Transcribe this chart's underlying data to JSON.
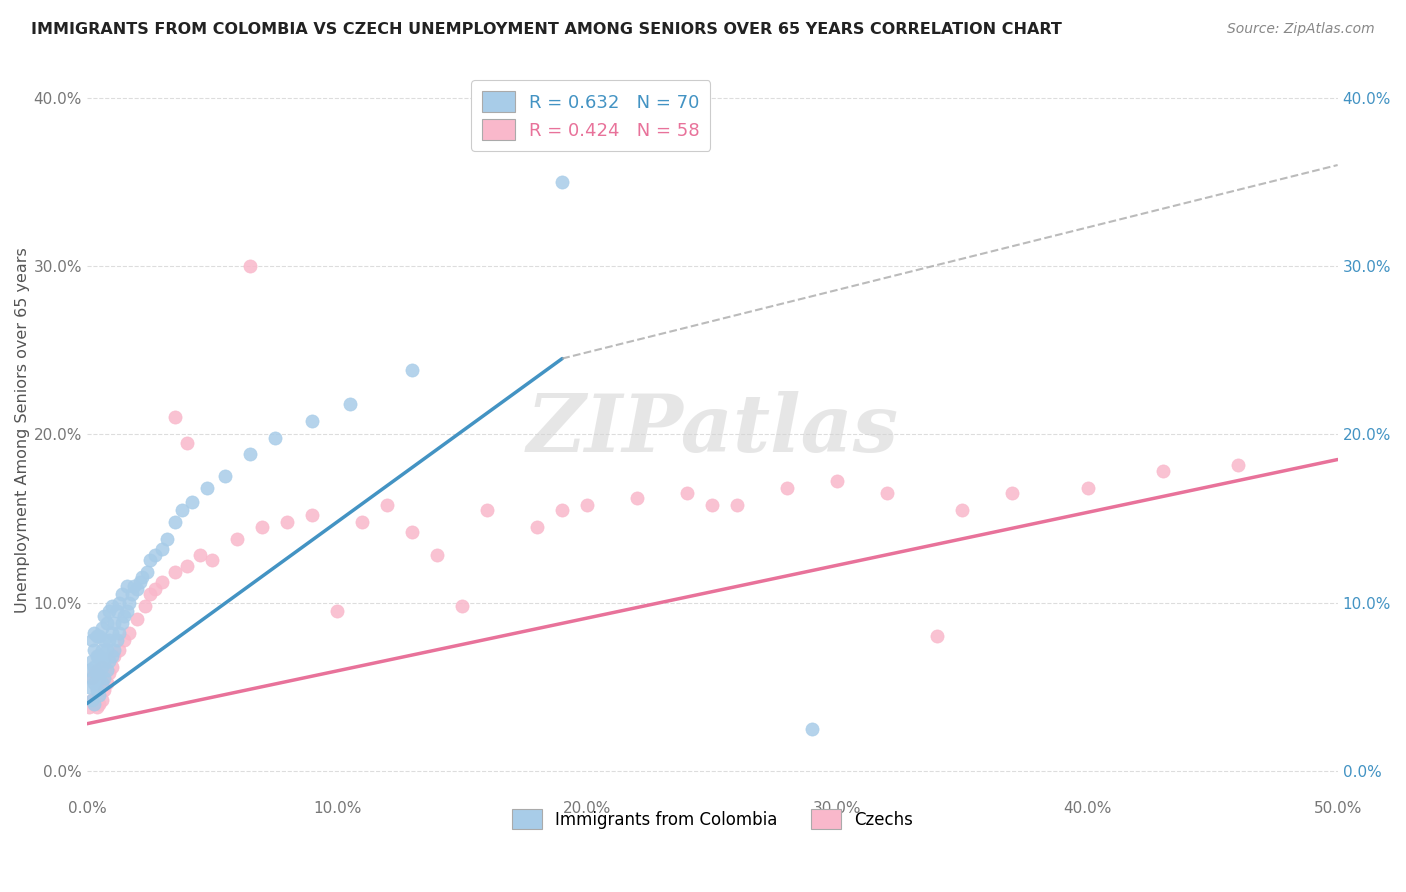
{
  "title": "IMMIGRANTS FROM COLOMBIA VS CZECH UNEMPLOYMENT AMONG SENIORS OVER 65 YEARS CORRELATION CHART",
  "source": "Source: ZipAtlas.com",
  "ylabel": "Unemployment Among Seniors over 65 years",
  "xlim": [
    0.0,
    0.5
  ],
  "ylim": [
    -0.015,
    0.42
  ],
  "xticks": [
    0.0,
    0.1,
    0.2,
    0.3,
    0.4,
    0.5
  ],
  "xticklabels": [
    "0.0%",
    "10.0%",
    "20.0%",
    "30.0%",
    "40.0%",
    "50.0%"
  ],
  "yticks": [
    0.0,
    0.1,
    0.2,
    0.3,
    0.4
  ],
  "yticklabels": [
    "0.0%",
    "10.0%",
    "20.0%",
    "30.0%",
    "40.0%"
  ],
  "blue_color": "#a8cce8",
  "pink_color": "#f9b8cb",
  "blue_line_color": "#4393c3",
  "pink_line_color": "#e8729a",
  "blue_scatter_x": [
    0.001,
    0.001,
    0.002,
    0.002,
    0.002,
    0.002,
    0.003,
    0.003,
    0.003,
    0.003,
    0.003,
    0.004,
    0.004,
    0.004,
    0.004,
    0.005,
    0.005,
    0.005,
    0.005,
    0.006,
    0.006,
    0.006,
    0.006,
    0.007,
    0.007,
    0.007,
    0.007,
    0.008,
    0.008,
    0.008,
    0.009,
    0.009,
    0.009,
    0.01,
    0.01,
    0.01,
    0.011,
    0.011,
    0.012,
    0.012,
    0.013,
    0.013,
    0.014,
    0.014,
    0.015,
    0.016,
    0.016,
    0.017,
    0.018,
    0.019,
    0.02,
    0.021,
    0.022,
    0.024,
    0.025,
    0.027,
    0.03,
    0.032,
    0.035,
    0.038,
    0.042,
    0.048,
    0.055,
    0.065,
    0.075,
    0.09,
    0.105,
    0.13,
    0.19,
    0.29
  ],
  "blue_scatter_y": [
    0.05,
    0.06,
    0.042,
    0.055,
    0.065,
    0.078,
    0.04,
    0.052,
    0.062,
    0.072,
    0.082,
    0.048,
    0.058,
    0.068,
    0.08,
    0.045,
    0.055,
    0.068,
    0.08,
    0.052,
    0.062,
    0.072,
    0.085,
    0.055,
    0.065,
    0.078,
    0.092,
    0.06,
    0.072,
    0.088,
    0.065,
    0.078,
    0.095,
    0.068,
    0.082,
    0.098,
    0.072,
    0.088,
    0.078,
    0.095,
    0.082,
    0.1,
    0.088,
    0.105,
    0.092,
    0.095,
    0.11,
    0.1,
    0.105,
    0.11,
    0.108,
    0.112,
    0.115,
    0.118,
    0.125,
    0.128,
    0.132,
    0.138,
    0.148,
    0.155,
    0.16,
    0.168,
    0.175,
    0.188,
    0.198,
    0.208,
    0.218,
    0.238,
    0.35,
    0.025
  ],
  "pink_scatter_x": [
    0.001,
    0.002,
    0.002,
    0.003,
    0.003,
    0.004,
    0.004,
    0.005,
    0.005,
    0.006,
    0.006,
    0.007,
    0.008,
    0.009,
    0.01,
    0.011,
    0.013,
    0.015,
    0.017,
    0.02,
    0.023,
    0.027,
    0.03,
    0.035,
    0.04,
    0.045,
    0.05,
    0.06,
    0.07,
    0.08,
    0.09,
    0.1,
    0.11,
    0.12,
    0.13,
    0.14,
    0.16,
    0.18,
    0.2,
    0.22,
    0.24,
    0.26,
    0.28,
    0.3,
    0.32,
    0.35,
    0.37,
    0.4,
    0.43,
    0.46,
    0.025,
    0.035,
    0.04,
    0.065,
    0.15,
    0.19,
    0.25,
    0.34
  ],
  "pink_scatter_y": [
    0.038,
    0.042,
    0.055,
    0.04,
    0.058,
    0.038,
    0.06,
    0.04,
    0.058,
    0.042,
    0.062,
    0.048,
    0.052,
    0.058,
    0.062,
    0.068,
    0.072,
    0.078,
    0.082,
    0.09,
    0.098,
    0.108,
    0.112,
    0.118,
    0.122,
    0.128,
    0.125,
    0.138,
    0.145,
    0.148,
    0.152,
    0.095,
    0.148,
    0.158,
    0.142,
    0.128,
    0.155,
    0.145,
    0.158,
    0.162,
    0.165,
    0.158,
    0.168,
    0.172,
    0.165,
    0.155,
    0.165,
    0.168,
    0.178,
    0.182,
    0.105,
    0.21,
    0.195,
    0.3,
    0.098,
    0.155,
    0.158,
    0.08
  ],
  "blue_line_x0": 0.0,
  "blue_line_x_solid_end": 0.19,
  "blue_line_x_dash_end": 0.5,
  "blue_line_y0": 0.04,
  "blue_line_y_solid_end": 0.245,
  "blue_line_y_dash_end": 0.36,
  "pink_line_x0": 0.0,
  "pink_line_x_end": 0.5,
  "pink_line_y0": 0.028,
  "pink_line_y_end": 0.185
}
